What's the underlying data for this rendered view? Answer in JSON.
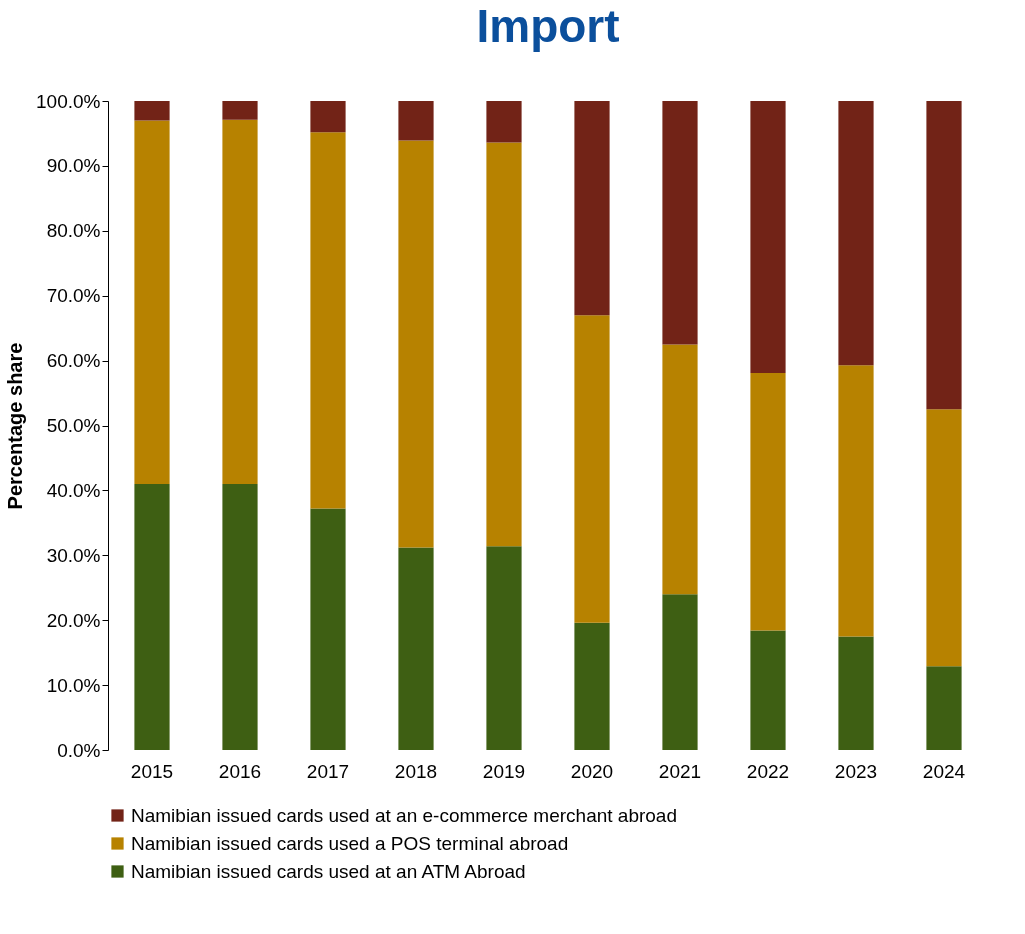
{
  "chart_data": {
    "type": "bar",
    "title": "Import",
    "ylabel": "Percentage share",
    "stacked": true,
    "categories": [
      "2015",
      "2016",
      "2017",
      "2018",
      "2019",
      "2020",
      "2021",
      "2022",
      "2023",
      "2024"
    ],
    "series": [
      {
        "name": "Namibian issued cards used at an ATM Abroad",
        "color": "#3e5f13",
        "values": [
          41.0,
          41.0,
          37.2,
          31.2,
          31.4,
          19.6,
          24.0,
          18.4,
          17.5,
          12.9
        ]
      },
      {
        "name": "Namibian issued cards used a POS terminal abroad",
        "color": "#b78200",
        "values": [
          56.0,
          56.1,
          58.0,
          62.7,
          62.2,
          47.4,
          38.5,
          39.7,
          41.8,
          39.6
        ]
      },
      {
        "name": "Namibian issued cards used at an e-commerce merchant abroad",
        "color": "#722317",
        "values": [
          3.0,
          2.9,
          4.8,
          6.1,
          6.4,
          33.0,
          37.5,
          41.9,
          40.7,
          47.5
        ]
      }
    ],
    "ylim": [
      0,
      100
    ],
    "yticks": [
      {
        "value": 0,
        "label": "0.0%"
      },
      {
        "value": 10,
        "label": "10.0%"
      },
      {
        "value": 20,
        "label": "20.0%"
      },
      {
        "value": 30,
        "label": "30.0%"
      },
      {
        "value": 40,
        "label": "40.0%"
      },
      {
        "value": 50,
        "label": "50.0%"
      },
      {
        "value": 60,
        "label": "60.0%"
      },
      {
        "value": 70,
        "label": "70.0%"
      },
      {
        "value": 80,
        "label": "80.0%"
      },
      {
        "value": 90,
        "label": "90.0%"
      },
      {
        "value": 100,
        "label": "100.0%"
      }
    ],
    "grid": false,
    "legend": "bottom"
  }
}
